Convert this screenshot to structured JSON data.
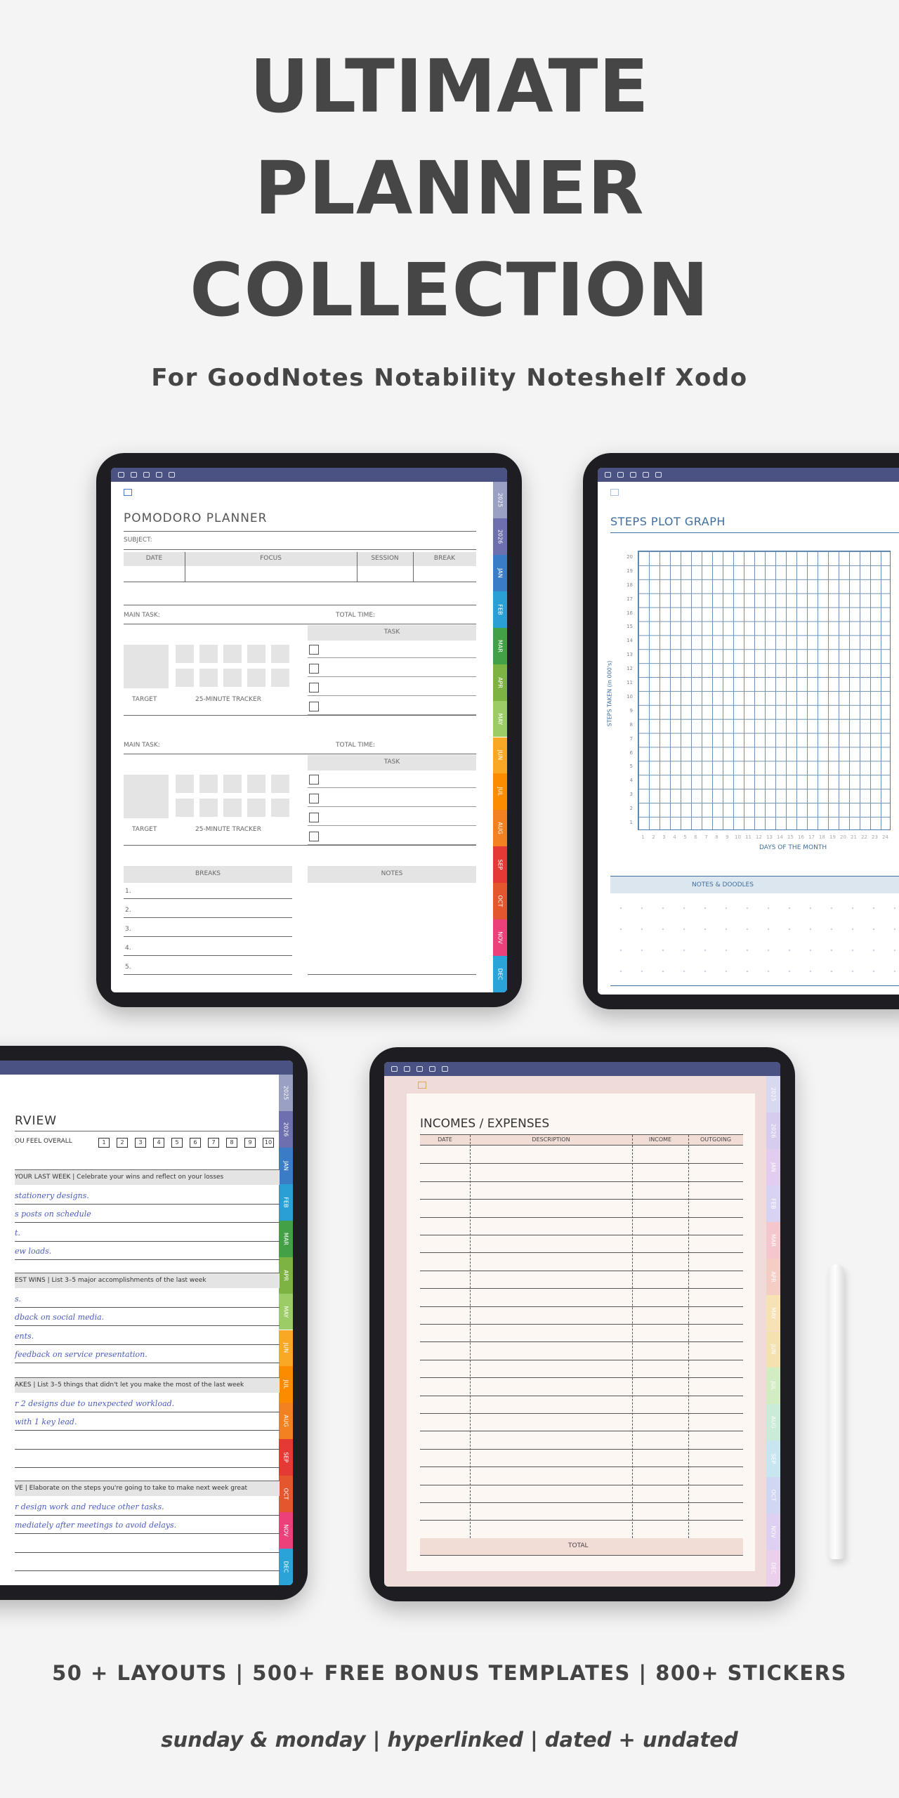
{
  "header": {
    "title_lines": [
      "ULTIMATE",
      "PLANNER",
      "COLLECTION"
    ],
    "subtitle": "For GoodNotes Notability Noteshelf Xodo"
  },
  "tabs": [
    "2025",
    "2026",
    "JAN",
    "FEB",
    "MAR",
    "APR",
    "MAY",
    "JUN",
    "JUL",
    "AUG",
    "SEP",
    "OCT",
    "NOV",
    "DEC"
  ],
  "pomodoro": {
    "title": "POMODORO PLANNER",
    "subject": "SUBJECT:",
    "columns": [
      "DATE",
      "FOCUS",
      "SESSION",
      "BREAK"
    ],
    "main_task": "MAIN TASK:",
    "total_time": "TOTAL TIME:",
    "task": "TASK",
    "target": "TARGET",
    "tracker": "25-MINUTE TRACKER",
    "breaks": "BREAKS",
    "notes": "NOTES",
    "break_numbers": [
      "1.",
      "2.",
      "3.",
      "4.",
      "5."
    ]
  },
  "steps": {
    "title": "STEPS PLOT GRAPH",
    "y_label": "STEPS TAKEN (in 000's)",
    "x_label": "DAYS OF THE MONTH",
    "y_ticks": [
      1,
      2,
      3,
      4,
      5,
      6,
      7,
      8,
      9,
      10,
      11,
      12,
      13,
      14,
      15,
      16,
      17,
      18,
      19,
      20
    ],
    "x_ticks": [
      1,
      2,
      3,
      4,
      5,
      6,
      7,
      8,
      9,
      10,
      11,
      12,
      13,
      14,
      15,
      16,
      17,
      18,
      19,
      20,
      21,
      22,
      23,
      24
    ],
    "notes": "NOTES & DOODLES"
  },
  "overview": {
    "title": "RVIEW",
    "feel": "OU FEEL OVERALL",
    "scale": [
      1,
      2,
      3,
      4,
      5,
      6,
      7,
      8,
      9,
      10
    ],
    "sections": [
      {
        "heading": "YOUR LAST WEEK | Celebrate your wins and reflect on your losses",
        "lines": [
          "stationery designs.",
          "s posts on schedule",
          "t.",
          "ew loads."
        ]
      },
      {
        "heading": "EST WINS | List 3–5 major accomplishments of the last week",
        "lines": [
          "s.",
          "dback on social media.",
          "ents.",
          "feedback on service presentation."
        ]
      },
      {
        "heading": "AKES | List 3–5 things that didn't let you make the most of the last week",
        "lines": [
          "r 2 designs due to unexpected workload.",
          "with 1 key lead."
        ]
      },
      {
        "heading": "VE | Elaborate on the steps you're going to take to make next week great",
        "lines": [
          "r design work and reduce other tasks.",
          "mediately after meetings to avoid delays."
        ]
      }
    ]
  },
  "finance": {
    "title": "INCOMES / EXPENSES",
    "columns": [
      "DATE",
      "DESCRIPTION",
      "INCOME",
      "OUTGOING"
    ],
    "total": "TOTAL"
  },
  "footer": {
    "features": "50 + LAYOUTS | 500+ FREE BONUS TEMPLATES | 800+ STICKERS",
    "tagline": "sunday & monday | hyperlinked | dated + undated"
  }
}
